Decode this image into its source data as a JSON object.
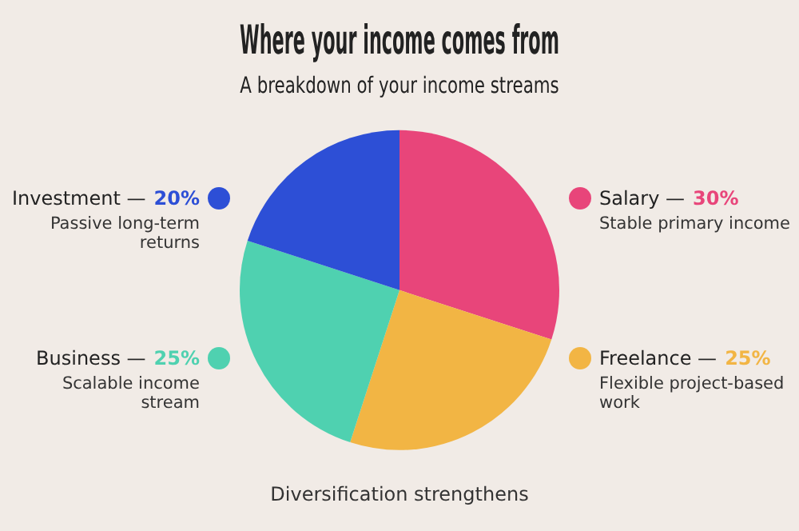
{
  "chart_data": {
    "type": "pie",
    "title": "Where your income comes from",
    "subtitle": "A breakdown of your income streams",
    "categories": [
      "Salary —",
      "Freelance —",
      "Business —",
      "Investment —"
    ],
    "values": [
      30,
      25,
      25,
      20
    ],
    "value_labels": [
      "30%",
      "25%",
      "25%",
      "20%"
    ],
    "colors": [
      "#e8457a",
      "#f2b544",
      "#4fd1b0",
      "#2d4fd6"
    ],
    "legend": "right",
    "annotations": [
      "Stable primary income",
      "Flexible project-based work",
      "Scalable income stream",
      "Passive long-term returns",
      "Diversification strengthens"
    ]
  }
}
